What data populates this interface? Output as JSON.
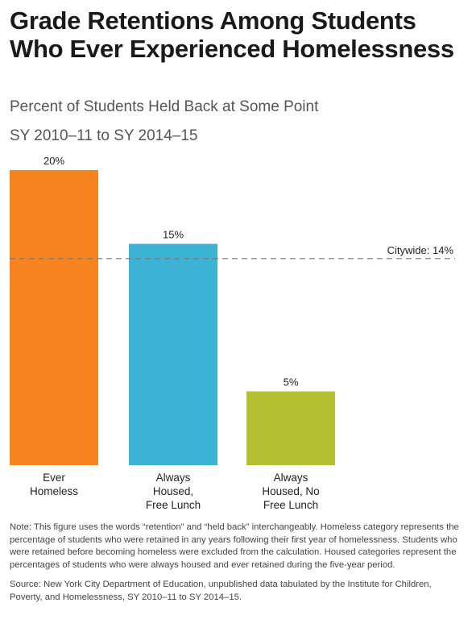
{
  "title": "Grade Retentions Among Students Who Ever Experienced Homelessness",
  "subtitle": "Percent of Students Held Back at Some Point",
  "period": "SY 2010–11 to SY 2014–15",
  "chart_data": {
    "type": "bar",
    "categories": [
      [
        "Ever",
        "Homeless"
      ],
      [
        "Always",
        "Housed,",
        "Free Lunch"
      ],
      [
        "Always",
        "Housed, No",
        "Free Lunch"
      ]
    ],
    "values": [
      20,
      15,
      5
    ],
    "value_labels": [
      "20%",
      "15%",
      "5%"
    ],
    "colors": [
      "#f7841f",
      "#3cb3d4",
      "#b4c031"
    ],
    "reference_line": {
      "value": 14,
      "label": "Citywide: 14%",
      "style": "dashed",
      "color": "#777777"
    },
    "ylim": [
      0,
      20
    ],
    "grid": false
  },
  "notes": {
    "note": "Note: This figure uses the words “retention” and “held back” interchangeably. Homeless category represents the percentage of students who were retained in any years following their first year of homelessness. Students who were retained before becoming homeless were excluded from the calculation. Housed categories represent the percentages of students who were always housed and ever retained during the five-year period.",
    "source": "Source: New York City Department of Education, unpublished data tabulated by the Institute for Children, Poverty, and Homelessness, SY 2010–11 to SY 2014–15."
  }
}
